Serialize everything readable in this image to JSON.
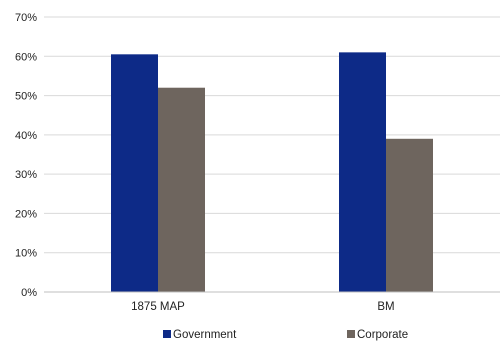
{
  "chart_data": {
    "type": "bar",
    "categories": [
      "1875 MAP",
      "BM"
    ],
    "series": [
      {
        "name": "Government",
        "values": [
          60.5,
          61.0
        ],
        "color": "#0d2a87"
      },
      {
        "name": "Corporate",
        "values": [
          52.0,
          39.0
        ],
        "color": "#6e655e"
      }
    ],
    "ylim": [
      0,
      70
    ],
    "yticks": [
      "0%",
      "10%",
      "20%",
      "30%",
      "40%",
      "50%",
      "60%",
      "70%"
    ],
    "grid": true,
    "legend_position": "bottom"
  }
}
